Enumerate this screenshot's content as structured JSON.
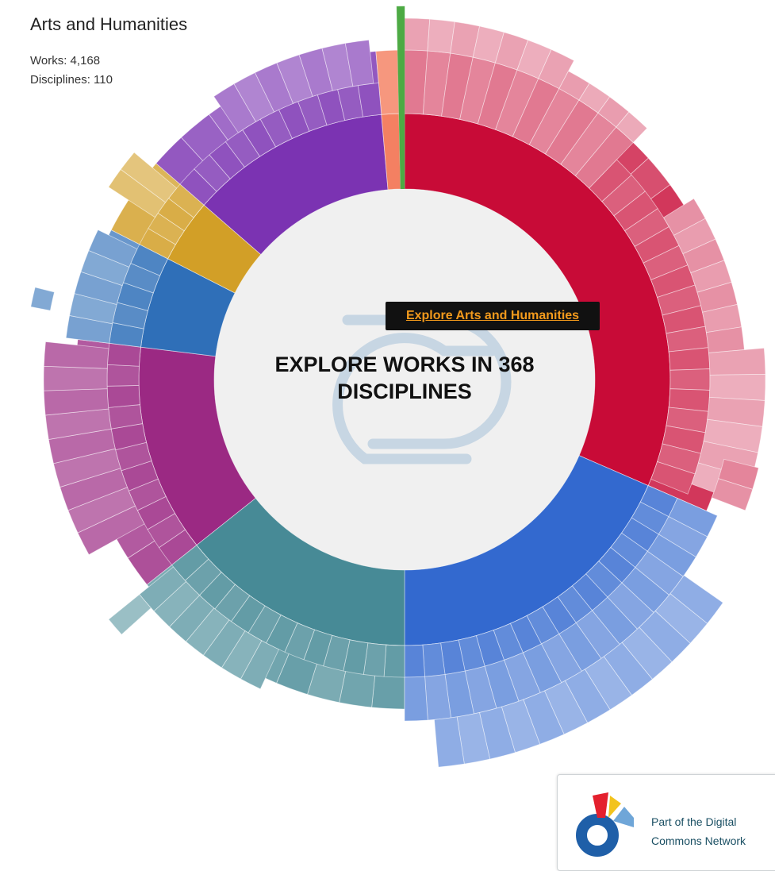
{
  "info": {
    "title": "Arts and Humanities",
    "works": "Works: 4,168",
    "disciplines": "Disciplines: 110"
  },
  "center": {
    "line1": "EXPLORE WORKS IN 368",
    "line2": "DISCIPLINES"
  },
  "tooltip": {
    "label": "Explore Arts and Humanities"
  },
  "badge": {
    "line1": "Part of the Digital",
    "line2": "Commons Network",
    "logo_colors": [
      "#1f5fa8",
      "#e4202e",
      "#f2c31d",
      "#6fa6d8"
    ]
  },
  "chart_data": {
    "type": "sunburst",
    "total_disciplines": 368,
    "highlighted": "Arts and Humanities",
    "highlighted_works": 4168,
    "highlighted_disciplines": 110,
    "inner_ring": [
      {
        "color": "#c80b37",
        "share": 0.315
      },
      {
        "color": "#3369cf",
        "share": 0.185
      },
      {
        "color": "#478a96",
        "share": 0.143
      },
      {
        "color": "#9b2983",
        "share": 0.126
      },
      {
        "color": "#2f6fb8",
        "share": 0.055
      },
      {
        "color": "#d29f27",
        "share": 0.039
      },
      {
        "color": "#7b33b2",
        "share": 0.036
      },
      {
        "color": "#f48062",
        "share": 0.006
      },
      {
        "color": "#4daa44",
        "share": 0.0025
      }
    ]
  }
}
